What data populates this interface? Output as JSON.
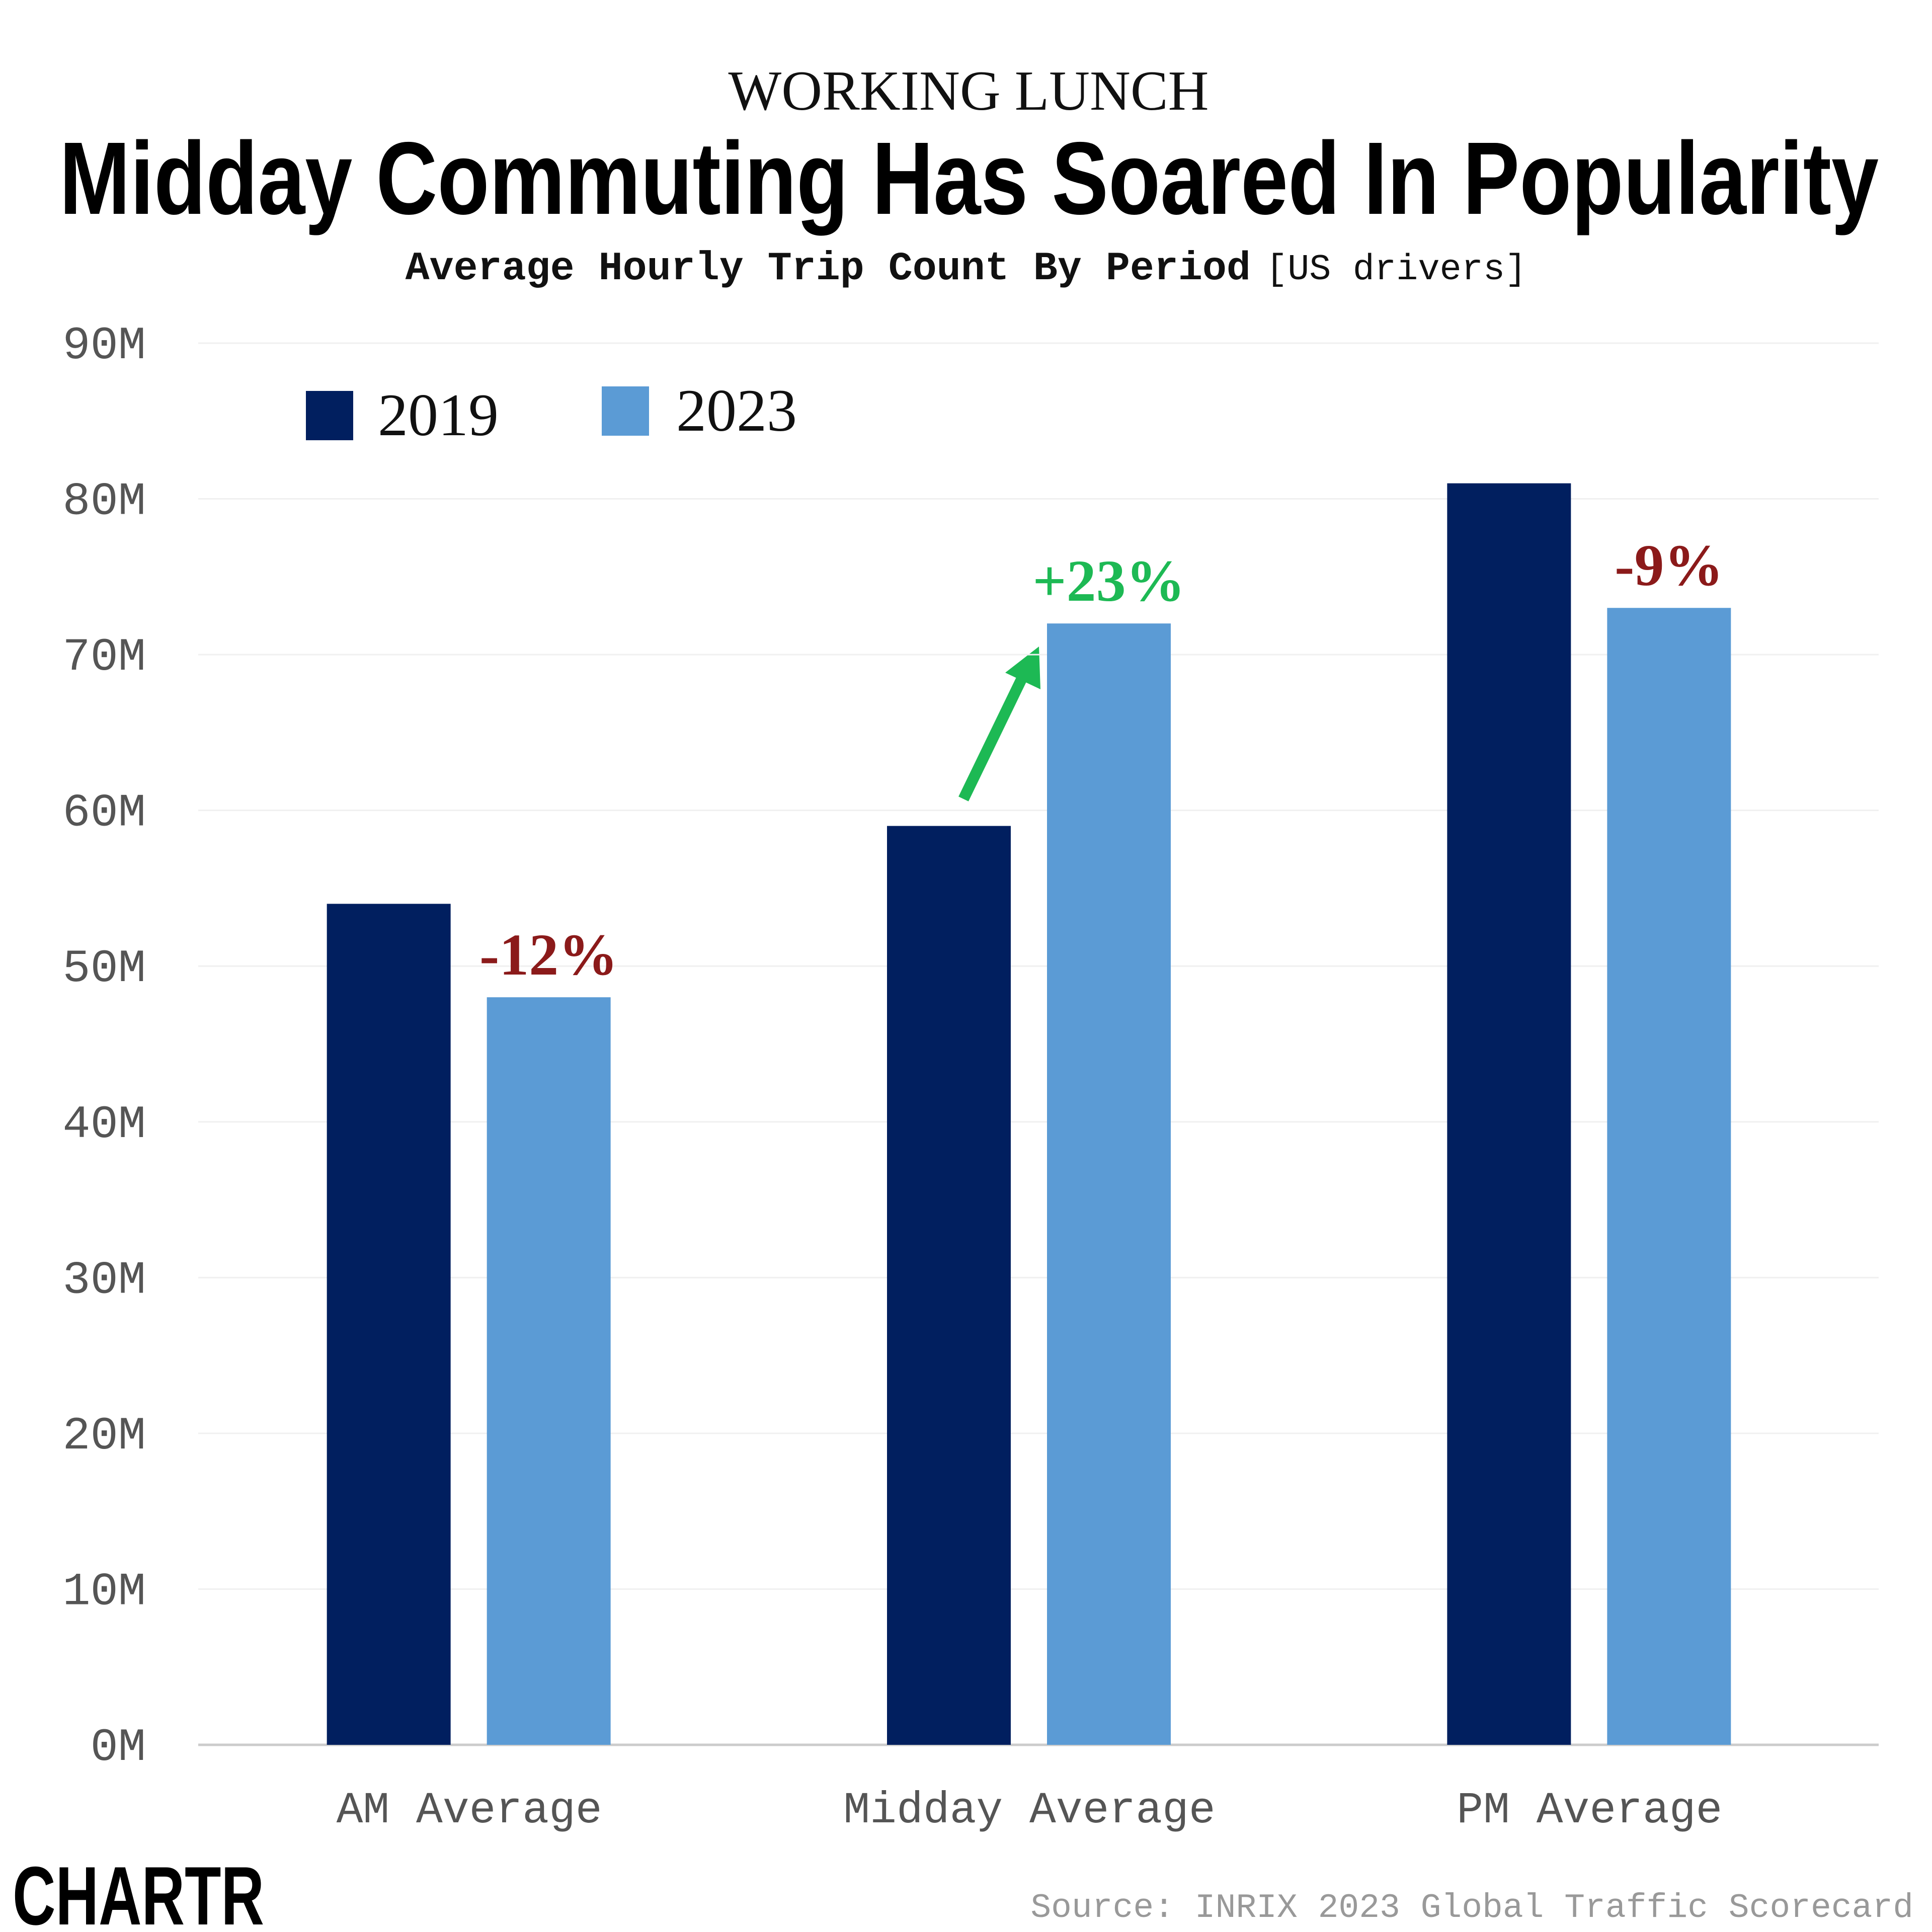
{
  "chart_data": {
    "type": "bar",
    "kicker": "WORKING LUNCH",
    "title": "Midday Commuting Has Soared In Popularity",
    "subtitle": "Average Hourly Trip Count By Period",
    "subtitle_note": "[US drivers]",
    "categories": [
      "AM Average",
      "Midday Average",
      "PM Average"
    ],
    "series": [
      {
        "name": "2019",
        "color": "#011f5f",
        "values": [
          54000000,
          59000000,
          81000000
        ]
      },
      {
        "name": "2023",
        "color": "#5b9bd5",
        "values": [
          48000000,
          72000000,
          73000000
        ]
      }
    ],
    "annotations": [
      {
        "text": "-12%",
        "color": "#8b1a1a"
      },
      {
        "text": "+23%",
        "color": "#1db954"
      },
      {
        "text": "-9%",
        "color": "#8b1a1a"
      }
    ],
    "ylim": [
      0,
      90000000
    ],
    "yticks": [
      {
        "value": 0,
        "label": "0M"
      },
      {
        "value": 10000000,
        "label": "10M"
      },
      {
        "value": 20000000,
        "label": "20M"
      },
      {
        "value": 30000000,
        "label": "30M"
      },
      {
        "value": 40000000,
        "label": "40M"
      },
      {
        "value": 50000000,
        "label": "50M"
      },
      {
        "value": 60000000,
        "label": "60M"
      },
      {
        "value": 70000000,
        "label": "70M"
      },
      {
        "value": 80000000,
        "label": "80M"
      },
      {
        "value": 90000000,
        "label": "90M"
      }
    ],
    "grid": true,
    "legend": "top-left",
    "source": "Source: INRIX 2023 Global Traffic Scorecard",
    "logo": "CHARTR"
  }
}
